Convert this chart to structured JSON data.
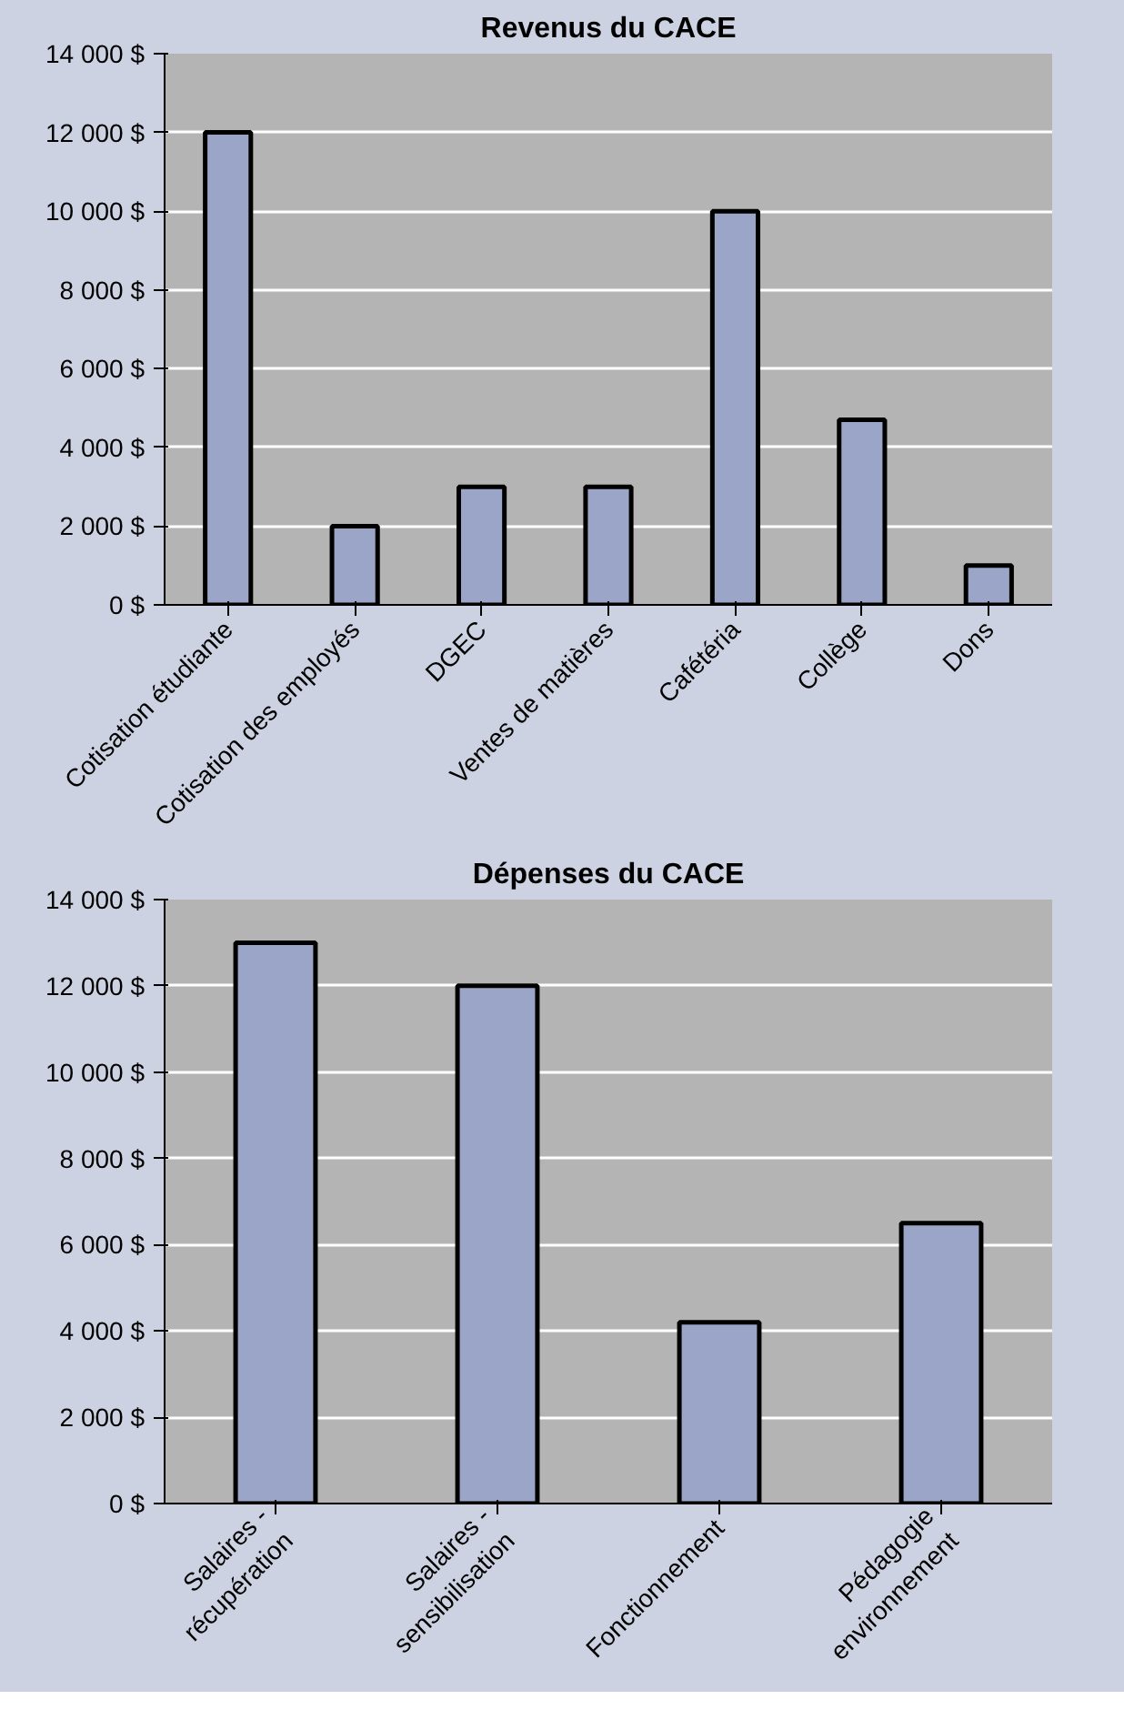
{
  "chart_data": [
    {
      "type": "bar",
      "title": "Revenus du CACE",
      "categories": [
        "Cotisation étudiante",
        "Cotisation des employés",
        "DGEC",
        "Ventes de matières",
        "Cafétéria",
        "Collège",
        "Dons"
      ],
      "values": [
        12000,
        2000,
        3000,
        3000,
        10000,
        4700,
        1000
      ],
      "color": "#9aa5c7",
      "ylim": [
        0,
        14000
      ],
      "yticks": [
        {
          "value": 0,
          "label": "0 $"
        },
        {
          "value": 2000,
          "label": "2 000 $"
        },
        {
          "value": 4000,
          "label": "4 000 $"
        },
        {
          "value": 6000,
          "label": "6 000 $"
        },
        {
          "value": 8000,
          "label": "8 000 $"
        },
        {
          "value": 10000,
          "label": "10 000 $"
        },
        {
          "value": 12000,
          "label": "12 000 $"
        },
        {
          "value": 14000,
          "label": "14 000 $"
        }
      ],
      "grid": "y"
    },
    {
      "type": "bar",
      "title": "Dépenses du CACE",
      "categories": [
        "Salaires -\nrécupération",
        "Salaires -\nsensibilisation",
        "Fonctionnement",
        "Pédagogie\nenvironnement"
      ],
      "values": [
        13000,
        12000,
        4200,
        6500
      ],
      "color": "#9aa5c7",
      "ylim": [
        0,
        14000
      ],
      "yticks": [
        {
          "value": 0,
          "label": "0 $"
        },
        {
          "value": 2000,
          "label": "2 000 $"
        },
        {
          "value": 4000,
          "label": "4 000 $"
        },
        {
          "value": 6000,
          "label": "6 000 $"
        },
        {
          "value": 8000,
          "label": "8 000 $"
        },
        {
          "value": 10000,
          "label": "10 000 $"
        },
        {
          "value": 12000,
          "label": "12 000 $"
        },
        {
          "value": 14000,
          "label": "14 000 $"
        }
      ],
      "grid": "y"
    }
  ]
}
